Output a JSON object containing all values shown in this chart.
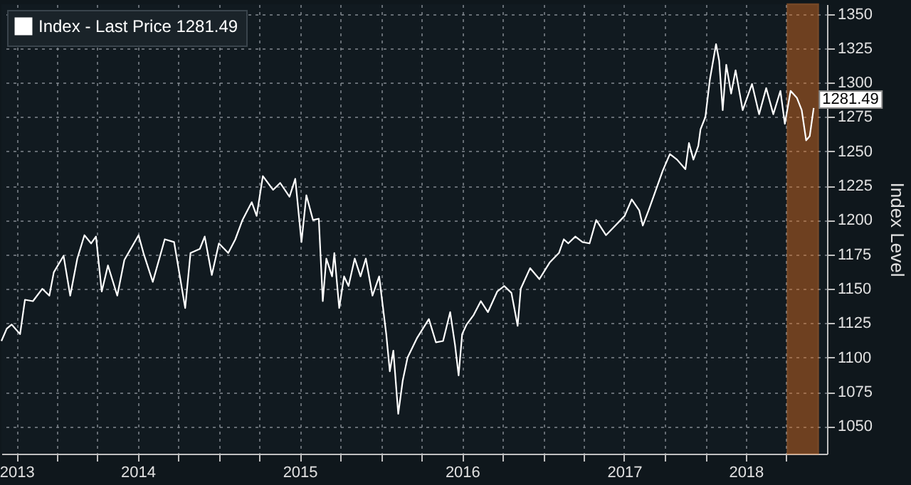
{
  "chart_data": {
    "type": "line",
    "ylabel": "Index Level",
    "legend": "top left",
    "grid": true,
    "marker": "none",
    "line_style": "solid",
    "x": [
      "2013-08-28",
      "2013-09-09",
      "2013-09-20",
      "2013-10-09",
      "2013-10-20",
      "2013-11-07",
      "2013-11-28",
      "2013-12-14",
      "2013-12-24",
      "2014-01-15",
      "2014-01-30",
      "2014-02-15",
      "2014-03-03",
      "2014-03-18",
      "2014-03-29",
      "2014-04-11",
      "2014-04-25",
      "2014-05-16",
      "2014-06-01",
      "2014-07-03",
      "2014-07-14",
      "2014-08-04",
      "2014-08-31",
      "2014-09-21",
      "2014-10-16",
      "2014-10-28",
      "2014-11-18",
      "2014-11-29",
      "2014-12-15",
      "2014-12-31",
      "2015-01-21",
      "2015-02-06",
      "2015-02-22",
      "2015-03-15",
      "2015-03-26",
      "2015-04-09",
      "2015-05-02",
      "2015-05-18",
      "2015-06-08",
      "2015-06-21",
      "2015-07-05",
      "2015-07-16",
      "2015-07-31",
      "2015-08-13",
      "2015-08-22",
      "2015-08-30",
      "2015-09-12",
      "2015-09-17",
      "2015-09-28",
      "2015-10-09",
      "2015-10-19",
      "2015-11-02",
      "2015-11-15",
      "2015-11-27",
      "2015-12-12",
      "2015-12-27",
      "2016-01-12",
      "2016-01-20",
      "2016-01-28",
      "2016-02-08",
      "2016-02-18",
      "2016-02-29",
      "2016-03-21",
      "2016-04-17",
      "2016-05-03",
      "2016-05-19",
      "2016-06-04",
      "2016-06-15",
      "2016-06-23",
      "2016-07-01",
      "2016-07-11",
      "2016-07-27",
      "2016-08-12",
      "2016-08-28",
      "2016-09-18",
      "2016-10-04",
      "2016-10-20",
      "2016-11-03",
      "2016-11-10",
      "2016-12-01",
      "2016-12-22",
      "2017-01-14",
      "2017-02-04",
      "2017-02-15",
      "2017-02-25",
      "2017-03-13",
      "2017-03-29",
      "2017-04-14",
      "2017-04-29",
      "2017-05-21",
      "2017-06-11",
      "2017-07-02",
      "2017-07-18",
      "2017-08-04",
      "2017-08-12",
      "2017-08-25",
      "2017-09-05",
      "2017-09-26",
      "2017-10-12",
      "2017-10-28",
      "2017-11-16",
      "2017-11-24",
      "2017-12-04",
      "2017-12-15",
      "2017-12-20",
      "2017-12-31",
      "2018-01-10",
      "2018-01-24",
      "2018-01-31",
      "2018-02-08",
      "2018-02-16",
      "2018-02-27",
      "2018-03-09",
      "2018-03-25",
      "2018-04-15",
      "2018-05-01",
      "2018-05-17",
      "2018-06-02",
      "2018-06-18",
      "2018-06-28",
      "2018-07-11",
      "2018-07-25",
      "2018-08-05",
      "2018-08-15",
      "2018-08-23",
      "2018-09-01"
    ],
    "series": [
      {
        "name": "Index - Last Price 1281.49",
        "color": "#ffffff",
        "values": [
          1112,
          1121,
          1124,
          1117,
          1142,
          1141,
          1150,
          1145,
          1162,
          1174,
          1145,
          1172,
          1189,
          1183,
          1188,
          1148,
          1167,
          1145,
          1171,
          1189,
          1176,
          1155,
          1186,
          1184,
          1136,
          1176,
          1179,
          1188,
          1160,
          1183,
          1176,
          1186,
          1200,
          1213,
          1203,
          1232,
          1222,
          1227,
          1217,
          1230,
          1184,
          1218,
          1200,
          1201,
          1141,
          1172,
          1159,
          1176,
          1136,
          1159,
          1152,
          1172,
          1159,
          1172,
          1145,
          1159,
          1117,
          1090,
          1105,
          1059,
          1083,
          1100,
          1114,
          1128,
          1111,
          1112,
          1133,
          1109,
          1087,
          1117,
          1124,
          1131,
          1141,
          1133,
          1148,
          1152,
          1147,
          1123,
          1150,
          1165,
          1157,
          1169,
          1176,
          1186,
          1183,
          1188,
          1184,
          1183,
          1200,
          1189,
          1196,
          1203,
          1215,
          1207,
          1196,
          1207,
          1217,
          1236,
          1248,
          1244,
          1237,
          1256,
          1244,
          1254,
          1266,
          1275,
          1302,
          1328,
          1316,
          1280,
          1313,
          1292,
          1309,
          1280,
          1299,
          1277,
          1296,
          1277,
          1294,
          1270,
          1294,
          1289,
          1280,
          1258,
          1261,
          1281.49
        ]
      }
    ],
    "xlim": [
      "2013-08-28",
      "2018-10-01"
    ],
    "xticks": [
      {
        "value": "2013-10-01",
        "label": "2013"
      },
      {
        "value": "2014-01-01",
        "label": null
      },
      {
        "value": "2014-04-01",
        "label": null
      },
      {
        "value": "2014-07-01",
        "label": "2014"
      },
      {
        "value": "2014-10-01",
        "label": null
      },
      {
        "value": "2015-01-01",
        "label": null
      },
      {
        "value": "2015-04-01",
        "label": null
      },
      {
        "value": "2015-07-01",
        "label": "2015"
      },
      {
        "value": "2015-10-01",
        "label": null
      },
      {
        "value": "2016-01-01",
        "label": null
      },
      {
        "value": "2016-04-01",
        "label": null
      },
      {
        "value": "2016-07-01",
        "label": "2016"
      },
      {
        "value": "2016-10-01",
        "label": null
      },
      {
        "value": "2017-01-01",
        "label": null
      },
      {
        "value": "2017-04-01",
        "label": null
      },
      {
        "value": "2017-07-01",
        "label": "2017"
      },
      {
        "value": "2017-10-01",
        "label": null
      },
      {
        "value": "2018-01-01",
        "label": null
      },
      {
        "value": "2018-04-01",
        "label": "2018"
      },
      {
        "value": "2018-07-01",
        "label": null
      }
    ],
    "ylim": [
      1030,
      1357
    ],
    "yticks": [
      1050,
      1075,
      1100,
      1125,
      1150,
      1175,
      1200,
      1225,
      1250,
      1275,
      1300,
      1325,
      1350
    ],
    "bands": [
      {
        "axis": "x",
        "from": "2018-07-04",
        "to": "2018-09-11",
        "color": "#e07020"
      }
    ],
    "annotations": [
      {
        "text": "1281.49",
        "x": "2018-09-01",
        "y": 1281.49
      }
    ]
  }
}
